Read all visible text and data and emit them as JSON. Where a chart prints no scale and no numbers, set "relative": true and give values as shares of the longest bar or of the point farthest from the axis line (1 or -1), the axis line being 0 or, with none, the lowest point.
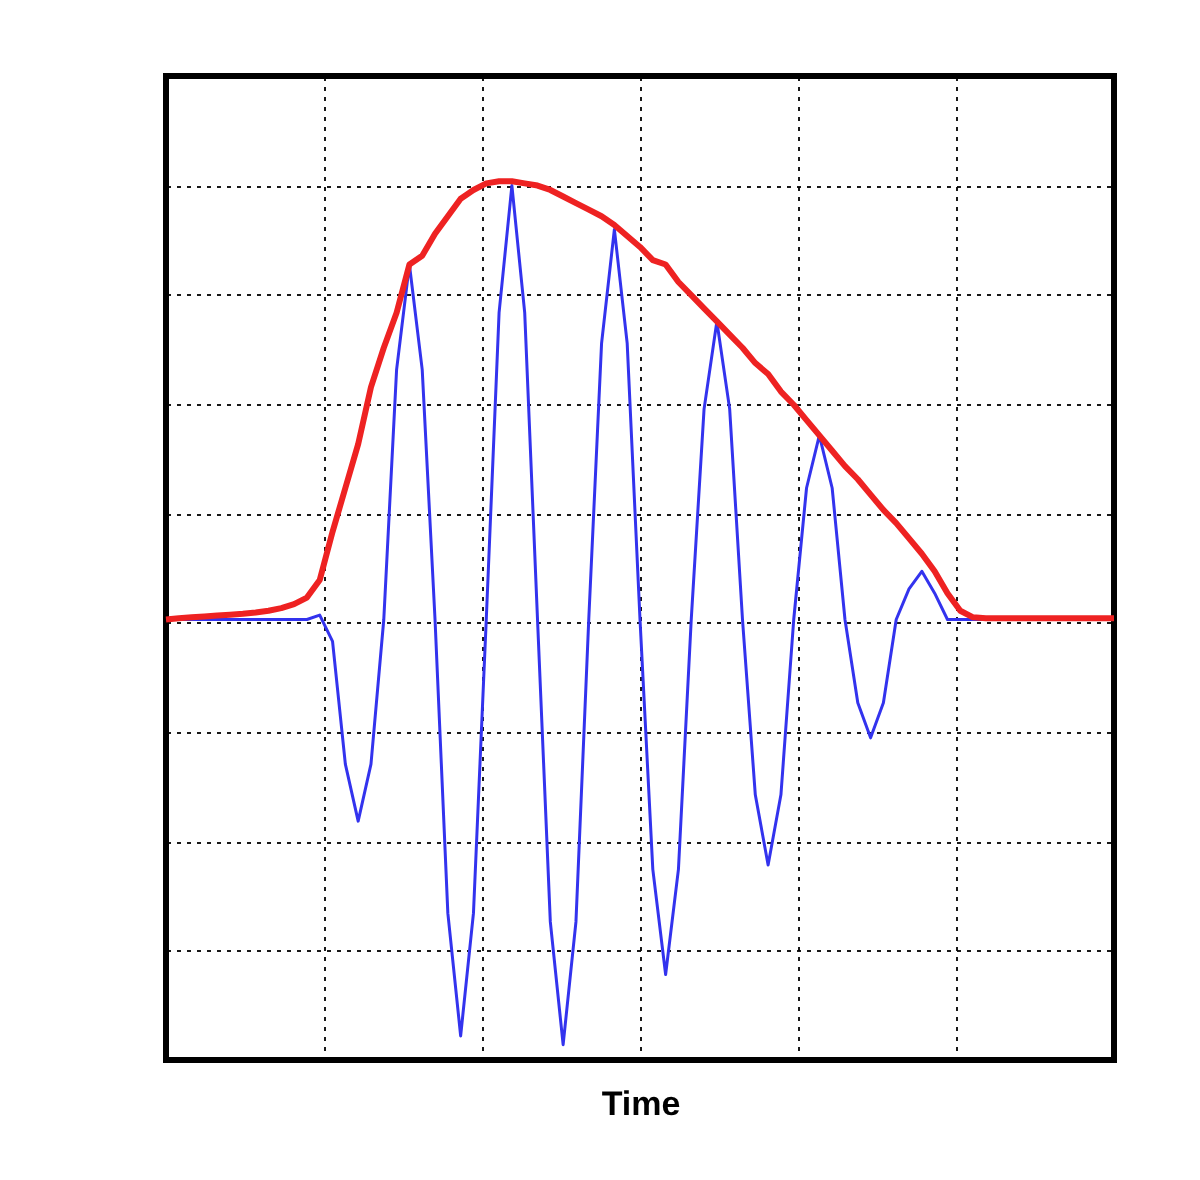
{
  "chart_data": {
    "type": "line",
    "xlabel": "Time",
    "relative": true,
    "grid": true,
    "tick_labels": false,
    "line_style": "solid",
    "marker": "none",
    "categories": [
      null,
      null,
      null,
      null,
      null,
      null,
      null,
      null,
      null,
      null,
      null,
      null,
      null,
      null,
      null,
      null,
      null,
      null,
      null,
      null,
      null,
      null,
      null,
      null,
      null,
      null,
      null,
      null,
      null,
      null,
      null,
      null,
      null,
      null,
      null,
      null,
      null,
      null,
      null,
      null,
      null,
      null,
      null,
      null,
      null,
      null,
      null,
      null,
      null,
      null,
      null,
      null,
      null,
      null,
      null,
      null,
      null,
      null,
      null,
      null,
      null,
      null,
      null,
      null,
      null,
      null,
      null,
      null,
      null,
      null,
      null,
      null,
      null,
      null,
      null
    ],
    "series": [
      {
        "color": "#3333ee",
        "values": [
          0,
          0,
          0,
          0,
          0,
          0,
          0,
          0,
          0,
          0,
          0,
          0,
          0.01,
          -0.05,
          -0.33,
          -0.46,
          -0.33,
          0,
          0.57,
          0.81,
          0.57,
          0,
          -0.67,
          -0.95,
          -0.67,
          0,
          0.7,
          0.99,
          0.7,
          0,
          -0.69,
          -0.97,
          -0.69,
          0,
          0.63,
          0.89,
          0.63,
          0,
          -0.57,
          -0.81,
          -0.57,
          0,
          0.48,
          0.68,
          0.48,
          0,
          -0.4,
          -0.56,
          -0.4,
          0,
          0.3,
          0.42,
          0.3,
          0,
          -0.19,
          -0.27,
          -0.19,
          0,
          0.07,
          0.11,
          0.06,
          0,
          0,
          0,
          0,
          0,
          null,
          null,
          null,
          null,
          null,
          null,
          null,
          null,
          null
        ]
      },
      {
        "color": "#ee2222",
        "values": [
          0,
          0.003,
          0.005,
          0.007,
          0.009,
          0.011,
          0.013,
          0.016,
          0.02,
          0.026,
          0.035,
          0.05,
          0.09,
          0.2,
          0.3,
          0.4,
          0.53,
          0.62,
          0.7,
          0.81,
          0.83,
          0.88,
          0.92,
          0.96,
          0.98,
          0.995,
          1.0,
          1.0,
          0.995,
          0.99,
          0.98,
          0.965,
          0.95,
          0.935,
          0.92,
          0.9,
          0.875,
          0.85,
          0.82,
          0.81,
          0.77,
          0.74,
          0.71,
          0.68,
          0.65,
          0.62,
          0.585,
          0.56,
          0.52,
          0.49,
          0.455,
          0.42,
          0.385,
          0.35,
          0.32,
          0.285,
          0.25,
          0.22,
          0.185,
          0.15,
          0.11,
          0.06,
          0.02,
          0.005,
          0.003,
          0.003,
          0.003,
          0.003,
          0.003,
          0.003,
          0.003,
          0.003,
          0.003,
          0.003,
          0.003
        ]
      }
    ]
  }
}
